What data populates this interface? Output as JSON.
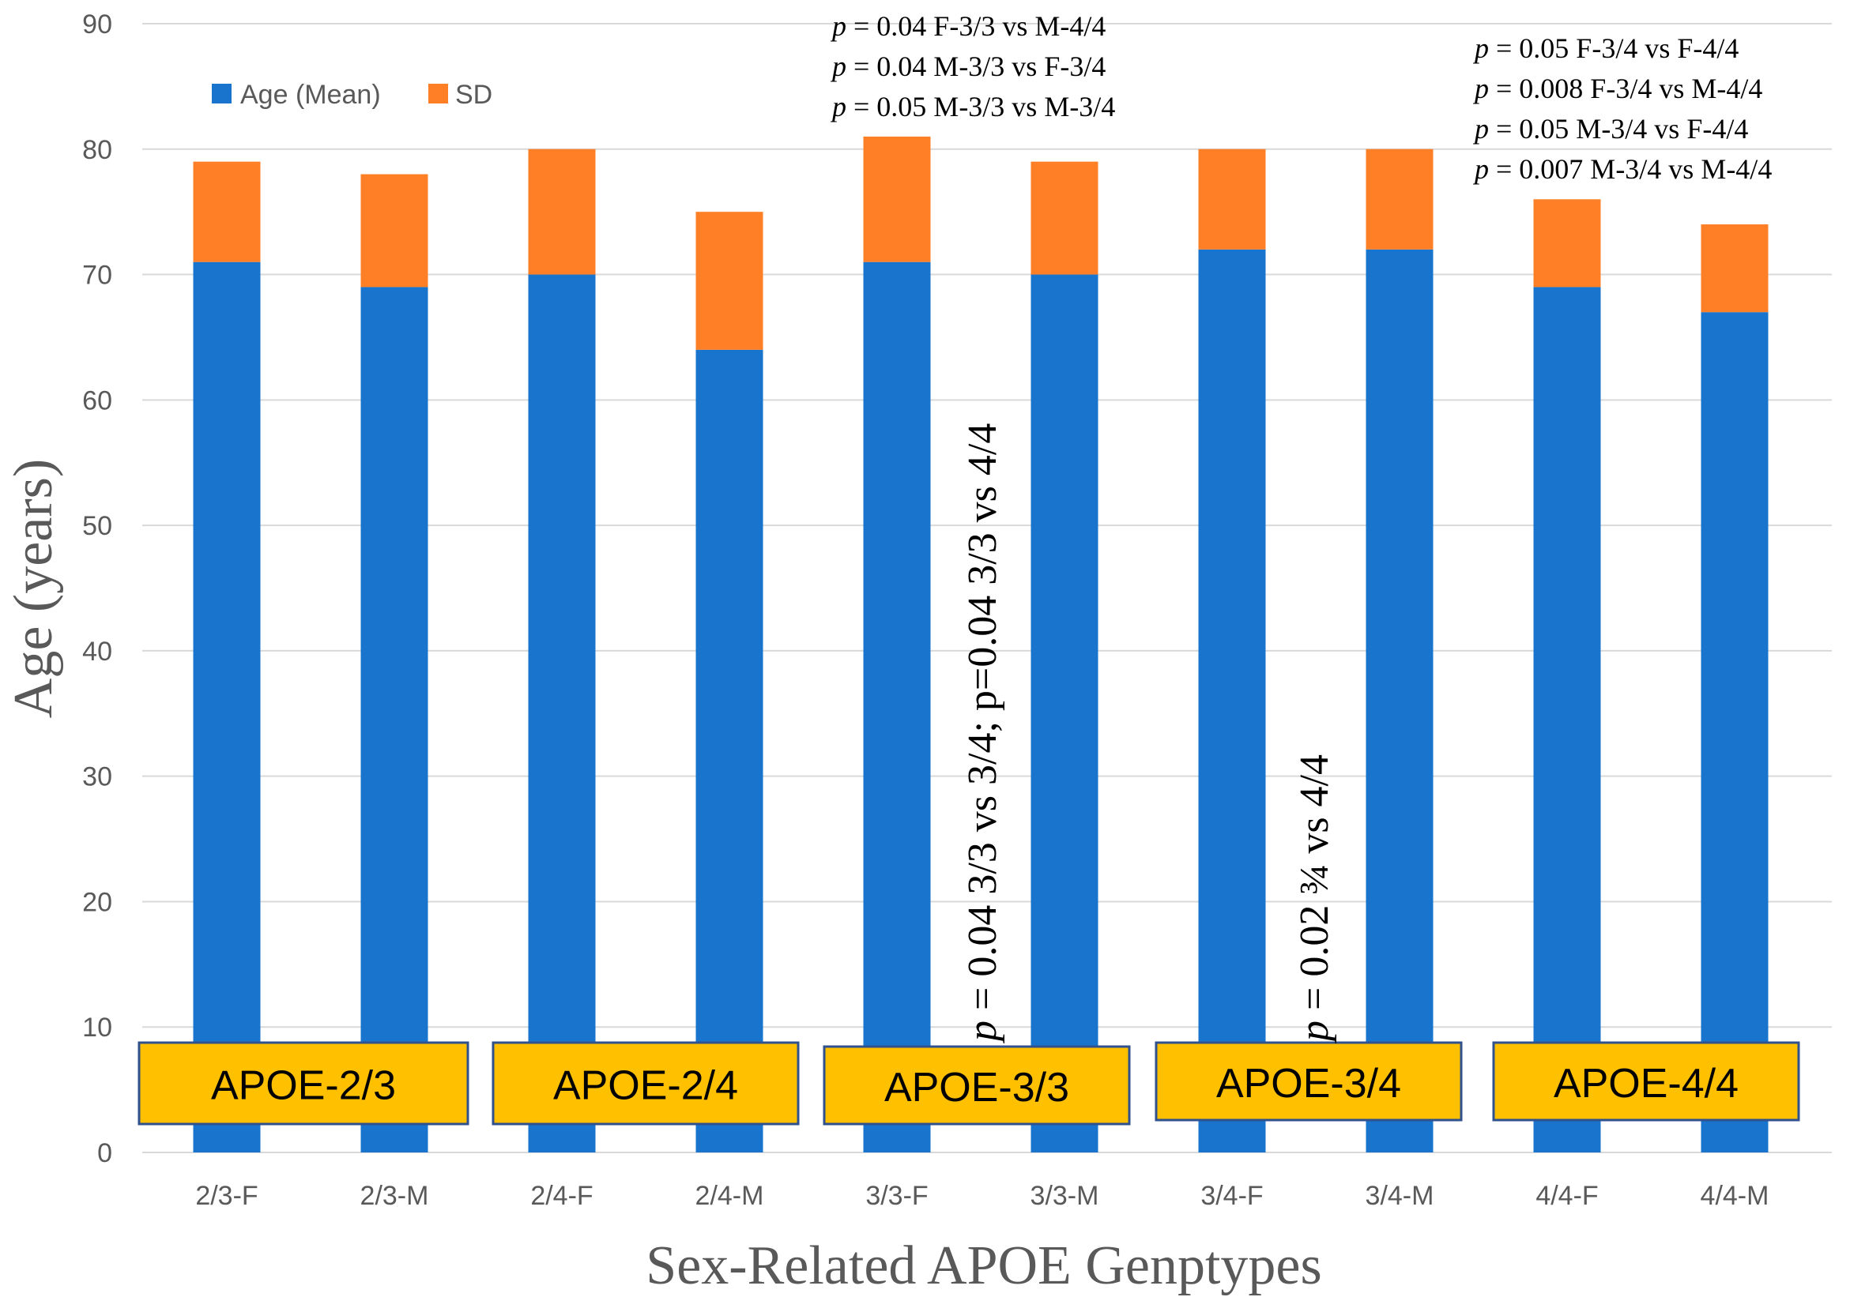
{
  "chart_data": {
    "type": "bar",
    "stacked": true,
    "title": "",
    "xlabel": "Sex-Related APOE Genptypes",
    "ylabel": "Age (years)",
    "ylim": [
      0,
      90
    ],
    "yticks": [
      0,
      10,
      20,
      30,
      40,
      50,
      60,
      70,
      80,
      90
    ],
    "grid": true,
    "legend_position": "top-left",
    "categories": [
      "2/3-F",
      "2/3-M",
      "2/4-F",
      "2/4-M",
      "3/3-F",
      "3/3-M",
      "3/4-F",
      "3/4-M",
      "4/4-F",
      "4/4-M"
    ],
    "series": [
      {
        "name": "Age (Mean)",
        "color": "#1874CD",
        "values": [
          71,
          69,
          70,
          64,
          71,
          70,
          72,
          72,
          69,
          67
        ]
      },
      {
        "name": "SD",
        "color": "#FF7F27",
        "values": [
          8,
          9,
          10,
          11,
          10,
          9,
          8,
          8,
          7,
          7
        ]
      }
    ],
    "group_labels": [
      "APOE-2/3",
      "APOE-2/4",
      "APOE-3/3",
      "APOE-3/4",
      "APOE-4/4"
    ],
    "group_box_color": "#FFC000",
    "annotations_top": [
      {
        "lines": [
          {
            "p": "p",
            "rest": " = 0.04 F-3/3 vs M-4/4"
          },
          {
            "p": "p",
            "rest": " = 0.04 M-3/3 vs F-3/4"
          },
          {
            "p": "p",
            "rest": " = 0.05 M-3/3 vs M-3/4"
          }
        ]
      },
      {
        "lines": [
          {
            "p": "p",
            "rest": " = 0.05 F-3/4 vs F-4/4"
          },
          {
            "p": "p",
            "rest": " = 0.008 F-3/4 vs M-4/4"
          },
          {
            "p": "p",
            "rest": " = 0.05 M-3/4 vs F-4/4"
          },
          {
            "p": "p",
            "rest": " = 0.007 M-3/4 vs M-4/4"
          }
        ]
      }
    ],
    "annotations_vertical": [
      {
        "p": "p",
        "rest": " = 0.04 3/3 vs 3/4; p=0.04 3/3 vs 4/4"
      },
      {
        "p": "p",
        "rest": " = 0.02 ¾ vs 4/4"
      }
    ]
  }
}
